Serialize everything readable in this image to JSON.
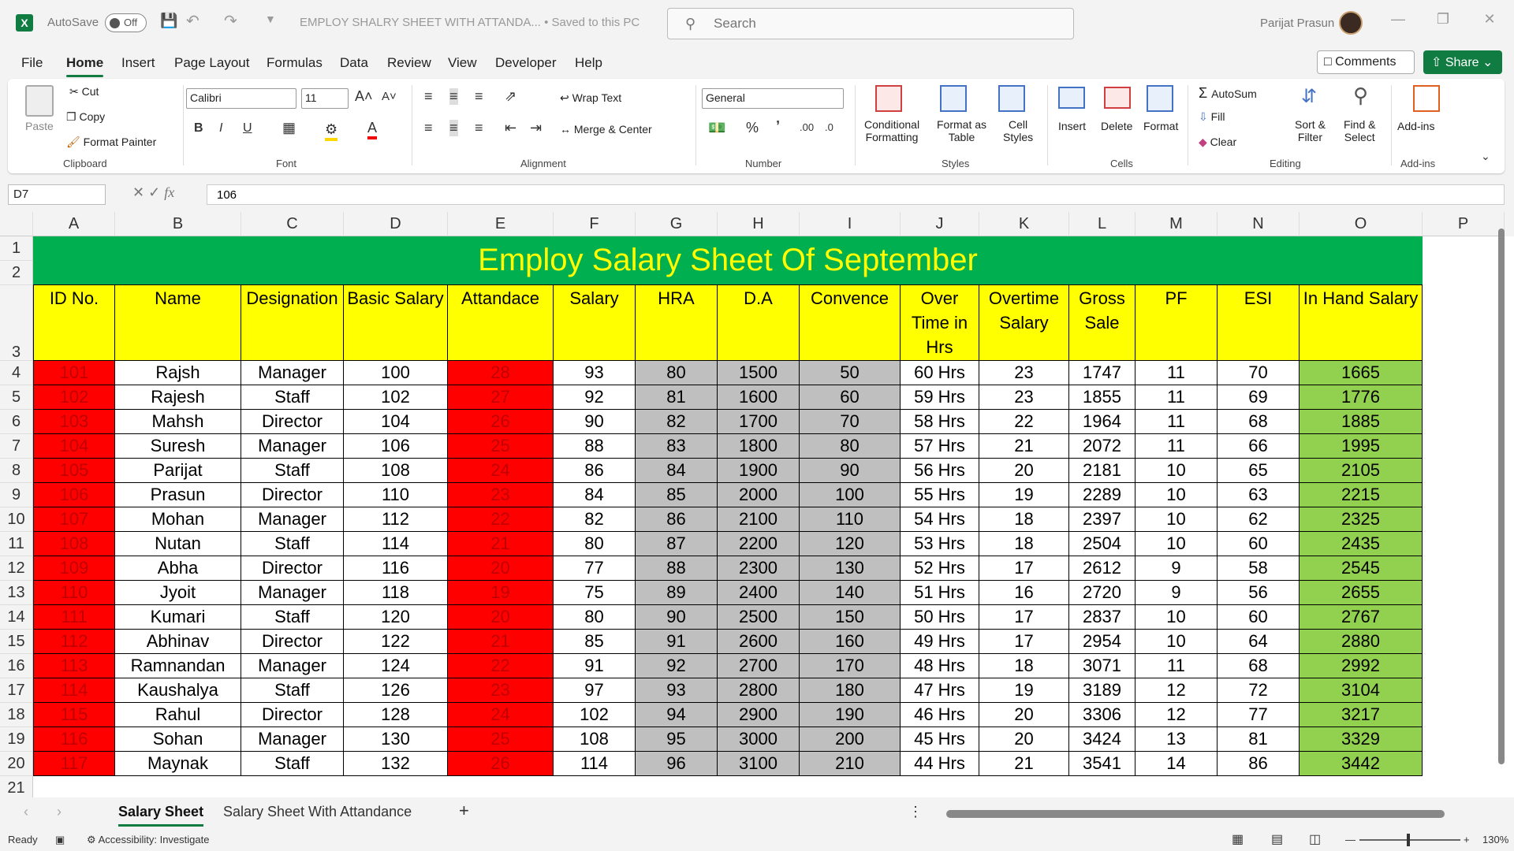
{
  "titlebar": {
    "app_icon": "X",
    "autosave_label": "AutoSave",
    "autosave_state": "Off",
    "file_title": "EMPLOY SHALRY SHEET WITH ATTANDA... • Saved to this PC",
    "search_placeholder": "Search",
    "username": "Parijat Prasun"
  },
  "menu": {
    "file": "File",
    "home": "Home",
    "insert": "Insert",
    "page_layout": "Page Layout",
    "formulas": "Formulas",
    "data": "Data",
    "review": "Review",
    "view": "View",
    "developer": "Developer",
    "help": "Help",
    "comments": "Comments",
    "share": "Share"
  },
  "ribbon": {
    "clipboard": {
      "paste": "Paste",
      "cut": "Cut",
      "copy": "Copy",
      "format_painter": "Format Painter",
      "label": "Clipboard"
    },
    "font": {
      "name": "Calibri",
      "size": "11",
      "label": "Font"
    },
    "alignment": {
      "wrap": "Wrap Text",
      "merge": "Merge & Center",
      "label": "Alignment"
    },
    "number": {
      "format": "General",
      "label": "Number"
    },
    "styles": {
      "conditional": "Conditional",
      "conditional2": "Formatting",
      "format_table": "Format as",
      "format_table2": "Table",
      "cell_styles": "Cell",
      "cell_styles2": "Styles",
      "label": "Styles"
    },
    "cells": {
      "insert": "Insert",
      "delete": "Delete",
      "format": "Format",
      "label": "Cells"
    },
    "editing": {
      "autosum": "AutoSum",
      "fill": "Fill",
      "clear": "Clear",
      "sort": "Sort &",
      "sort2": "Filter",
      "find": "Find &",
      "find2": "Select",
      "label": "Editing"
    },
    "addins": {
      "addins": "Add-ins",
      "label": "Add-ins"
    }
  },
  "formula_bar": {
    "name_box": "D7",
    "formula": "106"
  },
  "columns": [
    "A",
    "B",
    "C",
    "D",
    "E",
    "F",
    "G",
    "H",
    "I",
    "J",
    "K",
    "L",
    "M",
    "N",
    "O",
    "P"
  ],
  "row_numbers": [
    "1",
    "2",
    "3",
    "4",
    "5",
    "6",
    "7",
    "8",
    "9",
    "10",
    "11",
    "12",
    "13",
    "14",
    "15",
    "16",
    "17",
    "18",
    "19",
    "20",
    "21"
  ],
  "sheet": {
    "title": "Employ Salary Sheet Of September",
    "headers": [
      "ID No.",
      "Name",
      "Designation",
      "Basic Salary",
      "Attandace",
      "Salary",
      "HRA",
      "D.A",
      "Convence",
      "Over Time in Hrs",
      "Overtime Salary",
      "Gross Sale",
      "PF",
      "ESI",
      "In Hand Salary"
    ],
    "rows": [
      [
        "101",
        "Rajsh",
        "Manager",
        "100",
        "28",
        "93",
        "80",
        "1500",
        "50",
        "60 Hrs",
        "23",
        "1747",
        "11",
        "70",
        "1665"
      ],
      [
        "102",
        "Rajesh",
        "Staff",
        "102",
        "27",
        "92",
        "81",
        "1600",
        "60",
        "59 Hrs",
        "23",
        "1855",
        "11",
        "69",
        "1776"
      ],
      [
        "103",
        "Mahsh",
        "Director",
        "104",
        "26",
        "90",
        "82",
        "1700",
        "70",
        "58 Hrs",
        "22",
        "1964",
        "11",
        "68",
        "1885"
      ],
      [
        "104",
        "Suresh",
        "Manager",
        "106",
        "25",
        "88",
        "83",
        "1800",
        "80",
        "57 Hrs",
        "21",
        "2072",
        "11",
        "66",
        "1995"
      ],
      [
        "105",
        "Parijat",
        "Staff",
        "108",
        "24",
        "86",
        "84",
        "1900",
        "90",
        "56 Hrs",
        "20",
        "2181",
        "10",
        "65",
        "2105"
      ],
      [
        "106",
        "Prasun",
        "Director",
        "110",
        "23",
        "84",
        "85",
        "2000",
        "100",
        "55 Hrs",
        "19",
        "2289",
        "10",
        "63",
        "2215"
      ],
      [
        "107",
        "Mohan",
        "Manager",
        "112",
        "22",
        "82",
        "86",
        "2100",
        "110",
        "54 Hrs",
        "18",
        "2397",
        "10",
        "62",
        "2325"
      ],
      [
        "108",
        "Nutan",
        "Staff",
        "114",
        "21",
        "80",
        "87",
        "2200",
        "120",
        "53 Hrs",
        "18",
        "2504",
        "10",
        "60",
        "2435"
      ],
      [
        "109",
        "Abha",
        "Director",
        "116",
        "20",
        "77",
        "88",
        "2300",
        "130",
        "52 Hrs",
        "17",
        "2612",
        "9",
        "58",
        "2545"
      ],
      [
        "110",
        "Jyoit",
        "Manager",
        "118",
        "19",
        "75",
        "89",
        "2400",
        "140",
        "51 Hrs",
        "16",
        "2720",
        "9",
        "56",
        "2655"
      ],
      [
        "111",
        "Kumari",
        "Staff",
        "120",
        "20",
        "80",
        "90",
        "2500",
        "150",
        "50 Hrs",
        "17",
        "2837",
        "10",
        "60",
        "2767"
      ],
      [
        "112",
        "Abhinav",
        "Director",
        "122",
        "21",
        "85",
        "91",
        "2600",
        "160",
        "49 Hrs",
        "17",
        "2954",
        "10",
        "64",
        "2880"
      ],
      [
        "113",
        "Ramnandan",
        "Manager",
        "124",
        "22",
        "91",
        "92",
        "2700",
        "170",
        "48 Hrs",
        "18",
        "3071",
        "11",
        "68",
        "2992"
      ],
      [
        "114",
        "Kaushalya",
        "Staff",
        "126",
        "23",
        "97",
        "93",
        "2800",
        "180",
        "47 Hrs",
        "19",
        "3189",
        "12",
        "72",
        "3104"
      ],
      [
        "115",
        "Rahul",
        "Director",
        "128",
        "24",
        "102",
        "94",
        "2900",
        "190",
        "46 Hrs",
        "20",
        "3306",
        "12",
        "77",
        "3217"
      ],
      [
        "116",
        "Sohan",
        "Manager",
        "130",
        "25",
        "108",
        "95",
        "3000",
        "200",
        "45 Hrs",
        "20",
        "3424",
        "13",
        "81",
        "3329"
      ],
      [
        "117",
        "Maynak",
        "Staff",
        "132",
        "26",
        "114",
        "96",
        "3100",
        "210",
        "44 Hrs",
        "21",
        "3541",
        "14",
        "86",
        "3442"
      ]
    ]
  },
  "colors": {
    "red": "#ff0000",
    "grey": "#bfbfbf",
    "green": "#92d050",
    "yellow": "#ffff00",
    "title_bg": "#00b050",
    "accent": "#107c41"
  },
  "tabs": {
    "active": "Salary Sheet",
    "other": "Salary Sheet With Attandance"
  },
  "status": {
    "ready": "Ready",
    "accessibility": "Accessibility: Investigate",
    "zoom": "130%"
  }
}
